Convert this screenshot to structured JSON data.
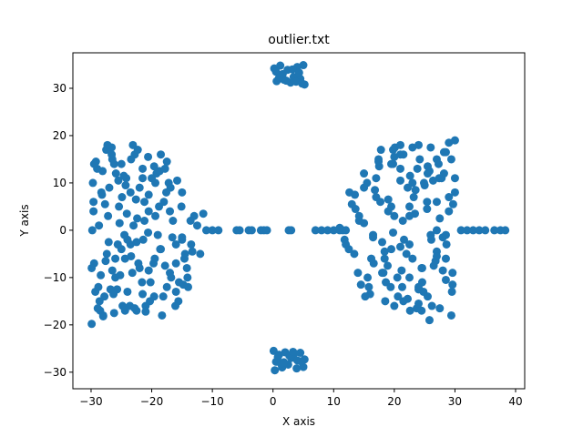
{
  "chart_data": {
    "type": "scatter",
    "title": "outlier.txt",
    "xlabel": "X axis",
    "ylabel": "Y axis",
    "xlim": [
      -33,
      41.5
    ],
    "ylim": [
      -33.5,
      37.5
    ],
    "xticks": [
      -30,
      -20,
      -10,
      0,
      10,
      20,
      30,
      40
    ],
    "yticks": [
      -30,
      -20,
      -10,
      0,
      10,
      20,
      30
    ],
    "grid": false,
    "legend": "none",
    "marker_color": "#1f77b4",
    "series": [
      {
        "x": [
          -29.8,
          -29.5,
          -29.2,
          -28.8,
          -28.3,
          -27.8,
          -27.2,
          -26.6,
          -26.0,
          -25.4,
          -24.8,
          -24.2,
          -23.5,
          -22.8,
          -22.0,
          -21.2,
          -20.3,
          -19.4,
          -18.5,
          -17.5,
          -29.6,
          -28.9,
          -28.1,
          -27.4,
          -26.5,
          -25.7,
          -24.9,
          -24.0,
          -23.1,
          -22.2,
          -21.2,
          -20.2,
          -19.2,
          -18.1,
          -17.0,
          -16.0,
          -15.0,
          -14.1,
          -29.9,
          -29.0,
          -28.0,
          -27.0,
          -26.0,
          -25.0,
          -24.0,
          -23.0,
          -22.0,
          -21.0,
          -20.0,
          -19.0,
          -18.0,
          -17.0,
          -16.0,
          -15.0,
          -14.0,
          -13.0,
          -12.0,
          -11.0,
          -10.0,
          -9.0,
          -28.5,
          -27.5,
          -26.5,
          -25.5,
          -24.5,
          -23.5,
          -22.5,
          -21.5,
          -20.5,
          -19.5,
          -18.5,
          -17.5,
          -16.5,
          -15.5,
          -14.5,
          -13.5,
          -12.5,
          -11.5,
          -29.5,
          -28.6,
          -27.7,
          -26.8,
          -25.9,
          -25.0,
          -24.1,
          -23.2,
          -22.3,
          -21.4,
          -20.5,
          -19.6,
          -18.7,
          -17.8,
          -16.9,
          -16.0,
          -15.1,
          -14.2,
          -13.3,
          -29.7,
          -28.7,
          -27.6,
          -26.6,
          -25.6,
          -24.6,
          -23.6,
          -22.6,
          -21.6,
          -20.6,
          -19.6,
          -18.6,
          -17.6,
          -16.6,
          -15.6,
          -14.6,
          -13.6,
          -29.3,
          -28.2,
          -27.1,
          -26.2,
          -25.2,
          -24.3,
          -23.4,
          -22.4,
          -21.5,
          -20.6,
          -19.7,
          -18.8,
          -17.8,
          -16.8,
          -15.8,
          -14.8,
          -29.6,
          -28.4,
          -27.3,
          -26.3,
          -25.3,
          -24.4,
          -23.4,
          -22.5,
          -21.5,
          -20.5,
          -19.4,
          -18.3,
          -17.2,
          -16.1,
          -15.0,
          -29.9,
          -28.0,
          -26.2,
          -24.4,
          -22.8,
          -21.0,
          -6.0,
          -5.5,
          -4.0,
          -3.5,
          -2.0,
          -1.5,
          -1.0,
          2.6,
          3.0,
          0.2,
          0.6,
          1.2,
          1.8,
          2.4,
          2.9,
          3.4,
          4.0,
          4.5,
          5.0,
          5.2,
          0.5,
          1.0,
          1.6,
          2.2,
          3.2,
          3.8,
          4.3,
          4.8,
          0.1,
          0.5,
          1.0,
          1.5,
          2.0,
          2.5,
          3.0,
          3.5,
          4.0,
          4.5,
          5.0,
          5.2,
          0.3,
          0.8,
          1.3,
          1.8,
          2.7,
          3.3,
          3.9,
          4.6,
          7.0,
          8.0,
          9.0,
          10.0,
          11.0,
          11.5,
          12.0,
          11.0,
          11.8,
          12.6,
          13.4,
          14.2,
          15.0,
          15.8,
          16.6,
          17.4,
          18.2,
          19.0,
          19.8,
          20.6,
          21.4,
          22.2,
          23.0,
          23.8,
          24.6,
          25.4,
          26.2,
          27.0,
          27.8,
          28.6,
          29.4,
          30.0,
          12.5,
          13.5,
          14.5,
          15.5,
          16.5,
          17.5,
          18.5,
          19.5,
          20.5,
          21.5,
          22.5,
          23.5,
          24.5,
          25.5,
          26.5,
          27.5,
          28.5,
          29.5,
          13.0,
          14.0,
          15.0,
          16.0,
          17.0,
          18.0,
          19.0,
          20.0,
          21.0,
          22.0,
          23.0,
          24.0,
          25.0,
          26.0,
          27.0,
          28.0,
          29.0,
          30.0,
          15.0,
          16.2,
          17.4,
          18.6,
          19.8,
          21.0,
          22.2,
          23.4,
          24.6,
          25.8,
          27.0,
          28.2,
          29.4,
          16.5,
          17.7,
          18.9,
          20.1,
          21.3,
          22.5,
          23.7,
          24.9,
          26.1,
          27.3,
          28.5,
          29.7,
          14.2,
          15.6,
          17.0,
          18.4,
          19.8,
          21.2,
          22.6,
          24.0,
          25.4,
          26.8,
          28.2,
          29.6,
          12.0,
          13.6,
          15.2,
          16.8,
          18.4,
          20.0,
          21.6,
          23.2,
          24.8,
          26.4,
          28.0,
          29.6,
          17.8,
          19.4,
          21.0,
          22.6,
          24.2,
          25.8,
          27.4,
          29.0,
          32.0,
          33.0,
          34.0,
          35.0,
          36.5,
          37.5,
          38.3,
          31.0,
          19.5,
          21.0,
          22.5,
          24.0,
          25.5,
          27.0,
          28.5,
          30.0,
          20.0,
          21.5,
          23.0,
          24.5,
          26.0,
          27.5,
          29.0,
          18.0,
          19.5,
          21.0,
          22.5,
          24.0,
          25.5,
          27.0,
          28.5
        ],
        "y": [
          0.0,
          -7.0,
          14.5,
          -12.0,
          8.0,
          -14.0,
          3.0,
          17.5,
          -10.0,
          5.0,
          -16.0,
          11.0,
          -3.0,
          16.0,
          -8.0,
          6.0,
          -15.0,
          10.0,
          -4.0,
          14.5,
          4.0,
          -16.5,
          12.5,
          -5.0,
          15.0,
          -12.5,
          7.0,
          -2.0,
          18.0,
          -7.0,
          2.0,
          -11.0,
          12.0,
          -14.0,
          4.0,
          -7.0,
          -2.0,
          -10.0,
          -8.0,
          13.0,
          -18.0,
          9.0,
          -6.0,
          14.0,
          -13.0,
          1.0,
          9.0,
          -16.0,
          11.0,
          -1.0,
          6.0,
          -9.0,
          -3.0,
          8.0,
          -12.0,
          3.0,
          -5.0,
          0.0,
          0.0,
          0.0,
          -17.0,
          17.0,
          -8.5,
          10.5,
          -1.0,
          8.0,
          -17.0,
          13.0,
          4.0,
          -6.0,
          16.0,
          -12.0,
          2.0,
          -11.0,
          -5.0,
          -3.0,
          1.0,
          3.5,
          14.0,
          -15.0,
          5.5,
          -12.5,
          12.0,
          -4.0,
          3.5,
          -9.0,
          17.0,
          -2.0,
          7.5,
          -14.0,
          12.5,
          -7.5,
          9.0,
          -13.0,
          5.0,
          -8.0,
          -4.5,
          10.0,
          1.0,
          -6.5,
          16.0,
          -3.0,
          11.5,
          -16.0,
          6.5,
          -11.0,
          -0.5,
          13.5,
          -4.0,
          8.0,
          -1.5,
          -15.0,
          -6.0,
          2.0,
          -13.0,
          7.5,
          -2.5,
          14.0,
          -9.5,
          9.5,
          -5.5,
          2.5,
          -13.5,
          15.5,
          -7.0,
          5.0,
          13.0,
          -10.0,
          10.5,
          -11.5,
          6.0,
          -9.5,
          18.0,
          -13.5,
          1.5,
          -6.0,
          15.0,
          -2.5,
          11.0,
          -8.5,
          3.0,
          -18.0,
          10.0,
          -16.0,
          -1.5,
          -19.8,
          -18.2,
          -17.5,
          -17.0,
          -16.5,
          -17.2,
          0.0,
          0.0,
          0.0,
          0.0,
          0.0,
          0.0,
          0.0,
          0.0,
          0.0,
          34.2,
          31.5,
          34.8,
          31.8,
          33.9,
          31.2,
          32.4,
          34.5,
          32.0,
          34.9,
          30.8,
          33.5,
          32.2,
          33.0,
          31.6,
          34.0,
          31.4,
          33.3,
          31.0,
          -25.5,
          -27.8,
          -26.3,
          -29.0,
          -25.8,
          -28.4,
          -27.0,
          -26.0,
          -27.5,
          -25.9,
          -28.9,
          -27.3,
          -29.6,
          -26.8,
          -28.2,
          -27.9,
          -26.5,
          -25.7,
          -29.2,
          -27.7,
          0.0,
          0.0,
          0.0,
          0.0,
          0.0,
          0.0,
          0.0,
          0.5,
          -2.0,
          8.0,
          -5.0,
          3.0,
          12.0,
          -12.0,
          -7.0,
          15.0,
          -9.0,
          4.0,
          17.0,
          -14.0,
          2.0,
          9.0,
          -6.0,
          13.0,
          -11.0,
          6.0,
          -16.0,
          0.0,
          11.0,
          -3.0,
          15.0,
          19.0,
          -4.0,
          7.5,
          -11.5,
          10.0,
          -1.0,
          13.5,
          -15.0,
          5.0,
          -10.0,
          16.0,
          -3.0,
          8.5,
          -17.0,
          12.0,
          -7.5,
          2.5,
          16.5,
          -13.0,
          5.5,
          -9.0,
          1.5,
          -13.5,
          11.0,
          -2.5,
          6.5,
          -16.0,
          13.0,
          -5.0,
          17.5,
          -12.5,
          9.5,
          -1.0,
          15.0,
          -8.5,
          4.0,
          8.0,
          9.0,
          -6.0,
          14.5,
          -11.0,
          -0.5,
          10.5,
          -14.5,
          3.5,
          -8.0,
          12.5,
          -4.5,
          16.5,
          -18.0,
          -1.5,
          6.0,
          -7.5,
          17.5,
          -12.0,
          3.0,
          -16.5,
          10.0,
          -2.0,
          14.0,
          -10.5,
          5.5,
          2.0,
          -10.0,
          7.0,
          -4.5,
          14.0,
          -8.5,
          11.5,
          -15.5,
          4.5,
          -6.5,
          12.0,
          -11.5,
          -3.0,
          4.5,
          -14.0,
          8.5,
          -6.0,
          15.5,
          -2.0,
          7.0,
          -13.0,
          10.5,
          -1.5,
          -9.0,
          17.0,
          -12.0,
          18.0,
          -17.0,
          15.0,
          -19.0,
          11.0,
          18.5,
          0.0,
          0.0,
          0.0,
          0.0,
          0.0,
          0.0,
          0.0,
          0.0,
          -4.0,
          16.0,
          -10.0,
          18.0,
          -14.0,
          6.0,
          -6.0,
          11.0,
          3.0,
          -15.0,
          10.0,
          -8.0,
          17.5,
          -16.5,
          7.0,
          -9.0,
          14.0,
          -3.5,
          5.0,
          -12.0,
          13.5,
          -5.5,
          -1.0
        ]
      }
    ]
  }
}
